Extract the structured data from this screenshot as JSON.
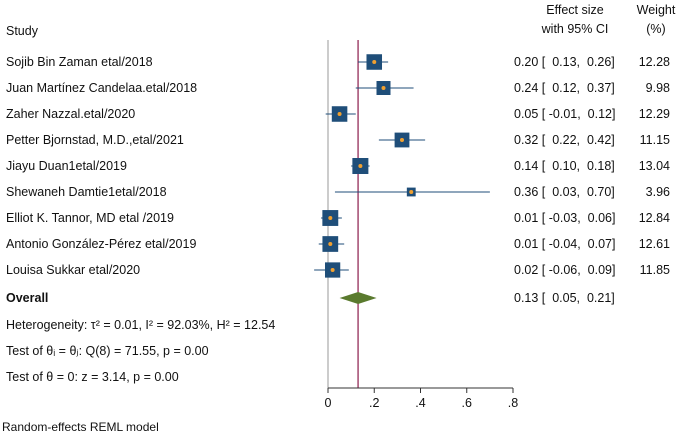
{
  "headers": {
    "study": "Study",
    "effect_line1": "Effect size",
    "effect_line2": "with 95% CI",
    "weight_line1": "Weight",
    "weight_line2": "(%)"
  },
  "rows": [
    {
      "study": "Sojib Bin Zaman etal/2018",
      "ci_text": "0.20 [  0.13,  0.26]",
      "weight": "12.28"
    },
    {
      "study": "Juan Martínez Candelaa.etal/2018",
      "ci_text": "0.24 [  0.12,  0.37]",
      "weight": "9.98"
    },
    {
      "study": "Zaher Nazzal.etal/2020",
      "ci_text": "0.05 [ -0.01,  0.12]",
      "weight": "12.29"
    },
    {
      "study": "Petter Bjornstad, M.D.,etal/2021",
      "ci_text": "0.32 [  0.22,  0.42]",
      "weight": "11.15"
    },
    {
      "study": "Jiayu Duan1etal/2019",
      "ci_text": "0.14 [  0.10,  0.18]",
      "weight": "13.04"
    },
    {
      "study": "Shewaneh Damtie1etal/2018",
      "ci_text": "0.36 [  0.03,  0.70]",
      "weight": "3.96"
    },
    {
      "study": "Elliot K. Tannor, MD etal /2019",
      "ci_text": "0.01 [ -0.03,  0.06]",
      "weight": "12.84"
    },
    {
      "study": "Antonio González-Pérez etal/2019",
      "ci_text": "0.01 [ -0.04,  0.07]",
      "weight": "12.61"
    },
    {
      "study": "Louisa Sukkar etal/2020",
      "ci_text": "0.02 [ -0.06,  0.09]",
      "weight": "11.85"
    }
  ],
  "overall": {
    "label": "Overall",
    "ci_text": "0.13 [  0.05,  0.21]"
  },
  "stats": {
    "heterogeneity": "Heterogeneity: τ² = 0.01, I² = 92.03%, H² = 12.54",
    "test_equal": "Test of θᵢ = θⱼ: Q(8) = 71.55, p = 0.00",
    "test_zero": "Test of θ = 0: z = 3.14, p = 0.00"
  },
  "footnote": "Random-effects REML model",
  "chart_data": {
    "type": "forest",
    "x_ticks": [
      0,
      0.2,
      0.4,
      0.6,
      0.8
    ],
    "x_tick_labels": [
      "0",
      ".2",
      ".4",
      ".6",
      ".8"
    ],
    "xlim": [
      0,
      0.8
    ],
    "null_line": 0,
    "pooled_line": 0.13,
    "studies": [
      {
        "name": "Sojib Bin Zaman etal/2018",
        "effect": 0.2,
        "lower": 0.13,
        "upper": 0.26,
        "weight": 12.28
      },
      {
        "name": "Juan Martínez Candelaa.etal/2018",
        "effect": 0.24,
        "lower": 0.12,
        "upper": 0.37,
        "weight": 9.98
      },
      {
        "name": "Zaher Nazzal.etal/2020",
        "effect": 0.05,
        "lower": -0.01,
        "upper": 0.12,
        "weight": 12.29
      },
      {
        "name": "Petter Bjornstad, M.D.,etal/2021",
        "effect": 0.32,
        "lower": 0.22,
        "upper": 0.42,
        "weight": 11.15
      },
      {
        "name": "Jiayu Duan1etal/2019",
        "effect": 0.14,
        "lower": 0.1,
        "upper": 0.18,
        "weight": 13.04
      },
      {
        "name": "Shewaneh Damtie1etal/2018",
        "effect": 0.36,
        "lower": 0.03,
        "upper": 0.7,
        "weight": 3.96
      },
      {
        "name": "Elliot K. Tannor, MD etal /2019",
        "effect": 0.01,
        "lower": -0.03,
        "upper": 0.06,
        "weight": 12.84
      },
      {
        "name": "Antonio González-Pérez etal/2019",
        "effect": 0.01,
        "lower": -0.04,
        "upper": 0.07,
        "weight": 12.61
      },
      {
        "name": "Louisa Sukkar etal/2020",
        "effect": 0.02,
        "lower": -0.06,
        "upper": 0.09,
        "weight": 11.85
      }
    ],
    "overall": {
      "effect": 0.13,
      "lower": 0.05,
      "upper": 0.21
    },
    "colors": {
      "box": "#1f4e79",
      "dot": "#f0a030",
      "ci": "#1f4e79",
      "diamond": "#5a7a2e",
      "pooled_line": "#8b1a4a",
      "null_line": "#999999"
    }
  }
}
